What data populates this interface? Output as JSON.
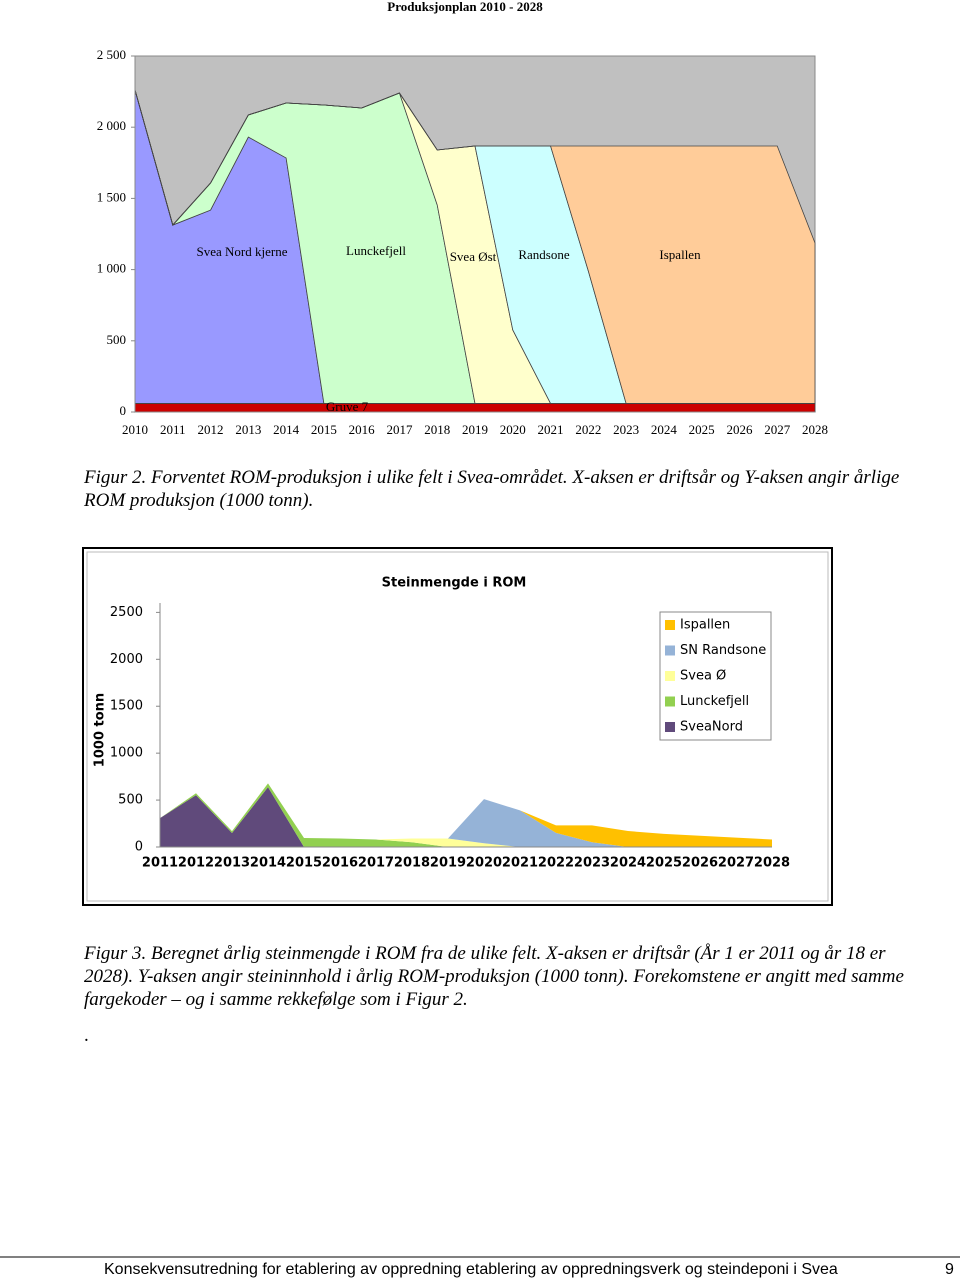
{
  "chart_data": [
    {
      "type": "area",
      "stacked": true,
      "title": "Produksjonplan 2010 - 2028",
      "categories": [
        "2010",
        "2011",
        "2012",
        "2013",
        "2014",
        "2015",
        "2016",
        "2017",
        "2018",
        "2019",
        "2020",
        "2021",
        "2022",
        "2023",
        "2024",
        "2025",
        "2026",
        "2027",
        "2028"
      ],
      "ylim": [
        0,
        2500
      ],
      "yticks": [
        0,
        500,
        {
          "value": 1000,
          "label": "1 000"
        },
        {
          "value": 1500,
          "label": "1 500"
        },
        {
          "value": 2000,
          "label": "2 000"
        },
        {
          "value": 2500,
          "label": "2 500"
        }
      ],
      "plot_background": "#c0c0c0",
      "series": [
        {
          "name": "Gruve 7",
          "color": "#cc0000",
          "values": [
            60,
            60,
            60,
            60,
            60,
            60,
            60,
            60,
            60,
            60,
            60,
            60,
            60,
            60,
            60,
            60,
            60,
            60,
            60
          ]
        },
        {
          "name": "Svea Nord kjerne",
          "color": "#9999ff",
          "values": [
            2201,
            1253,
            1358,
            1871,
            1724,
            0,
            0,
            0,
            0,
            0,
            0,
            0,
            0,
            0,
            0,
            0,
            0,
            0,
            0
          ]
        },
        {
          "name": "Lunckefjell",
          "color": "#ccffcc",
          "values": [
            0,
            0,
            190,
            155,
            386,
            2096,
            2075,
            2180,
            1394,
            0,
            0,
            0,
            0,
            0,
            0,
            0,
            0,
            0,
            0
          ]
        },
        {
          "name": "Svea Øst",
          "color": "#ffffcc",
          "values": [
            0,
            0,
            0,
            0,
            0,
            0,
            0,
            0,
            386,
            1808,
            516,
            0,
            0,
            0,
            0,
            0,
            0,
            0,
            0
          ]
        },
        {
          "name": "Randsone",
          "color": "#ccffff",
          "values": [
            0,
            0,
            0,
            0,
            0,
            0,
            0,
            0,
            0,
            0,
            1292,
            1808,
            930,
            0,
            0,
            0,
            0,
            0,
            0
          ]
        },
        {
          "name": "Ispallen",
          "color": "#ffcc99",
          "values": [
            0,
            0,
            0,
            0,
            0,
            0,
            0,
            0,
            0,
            0,
            0,
            0,
            878,
            1808,
            1808,
            1808,
            1808,
            1808,
            1127
          ]
        }
      ]
    },
    {
      "type": "area",
      "stacked": true,
      "title": "Steinmengde i ROM",
      "y_label": "1000 tonn",
      "categories": [
        "2011",
        "2012",
        "2013",
        "2014",
        "2015",
        "2016",
        "2017",
        "2018",
        "2019",
        "2020",
        "2021",
        "2022",
        "2023",
        "2024",
        "2025",
        "2026",
        "2027",
        "2028"
      ],
      "ylim": [
        0,
        2600
      ],
      "yticks": [
        0,
        500,
        1000,
        1500,
        2000,
        2500
      ],
      "legend": "upper right",
      "series": [
        {
          "name": "SveaNord",
          "color": "#604a7b",
          "values": [
            308,
            553,
            149,
            638,
            0,
            0,
            0,
            0,
            0,
            0,
            0,
            0,
            0,
            0,
            0,
            0,
            0,
            0
          ]
        },
        {
          "name": "Lunckefjell",
          "color": "#92d050",
          "values": [
            0,
            20,
            20,
            40,
            96,
            90,
            80,
            50,
            0,
            0,
            0,
            0,
            0,
            0,
            0,
            0,
            0,
            0
          ]
        },
        {
          "name": "Svea Ø",
          "color": "#ffff99",
          "values": [
            0,
            0,
            0,
            0,
            0,
            0,
            0,
            40,
            90,
            40,
            0,
            0,
            0,
            0,
            0,
            0,
            0,
            0
          ]
        },
        {
          "name": "SN Randsone",
          "color": "#95b3d7",
          "values": [
            0,
            0,
            0,
            0,
            0,
            0,
            0,
            0,
            0,
            470,
            390,
            150,
            50,
            0,
            0,
            0,
            0,
            0
          ]
        },
        {
          "name": "Ispallen",
          "color": "#ffc000",
          "values": [
            0,
            0,
            0,
            0,
            0,
            0,
            0,
            0,
            0,
            0,
            0,
            80,
            180,
            170,
            140,
            120,
            100,
            80
          ]
        }
      ]
    }
  ],
  "annotations": [
    "Svea Nord kjerne",
    "Lunckefjell",
    "Svea Øst",
    "Randsone",
    "Ispallen",
    "Gruve 7"
  ],
  "captions": [
    "Figur 2. Forventet ROM-produksjon i ulike felt i Svea-området. X-aksen er driftsår og Y-aksen angir årlige ROM produksjon (1000 tonn).",
    "Figur 3. Beregnet årlig steinmengde i ROM fra de ulike felt. X-aksen er driftsår (År 1 er 2011 og år 18 er 2028). Y-aksen angir steininnhold i årlig ROM-produksjon (1000 tonn). Forekomstene er angitt med samme fargekoder – og i samme rekkefølge som i Figur 2."
  ],
  "dot": ".",
  "footer": {
    "text": "Konsekvensutredning for etablering av oppredning etablering av oppredningsverk og steindeponi i Svea",
    "page": "9"
  }
}
